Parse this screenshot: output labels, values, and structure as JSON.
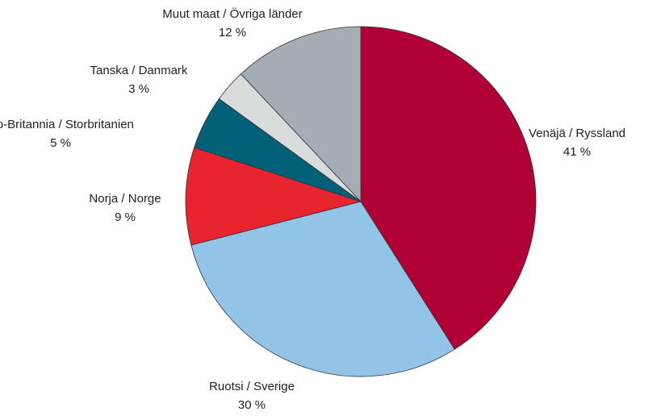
{
  "chart_data": {
    "type": "pie",
    "categories": [
      "Venäjä / Ryssland",
      "Ruotsi / Sverige",
      "Norja / Norge",
      "Iso-Britannia / Storbritanien",
      "Tanska / Danmark",
      "Muut maat / Övriga länder"
    ],
    "values": [
      41,
      30,
      9,
      5,
      3,
      12
    ],
    "value_labels": [
      "41 %",
      "30 %",
      "9 %",
      "5 %",
      "3 %",
      "12 %"
    ],
    "colors": [
      "#b00035",
      "#92c4e8",
      "#e8252e",
      "#006078",
      "#d9dcdc",
      "#a4adb4"
    ]
  }
}
